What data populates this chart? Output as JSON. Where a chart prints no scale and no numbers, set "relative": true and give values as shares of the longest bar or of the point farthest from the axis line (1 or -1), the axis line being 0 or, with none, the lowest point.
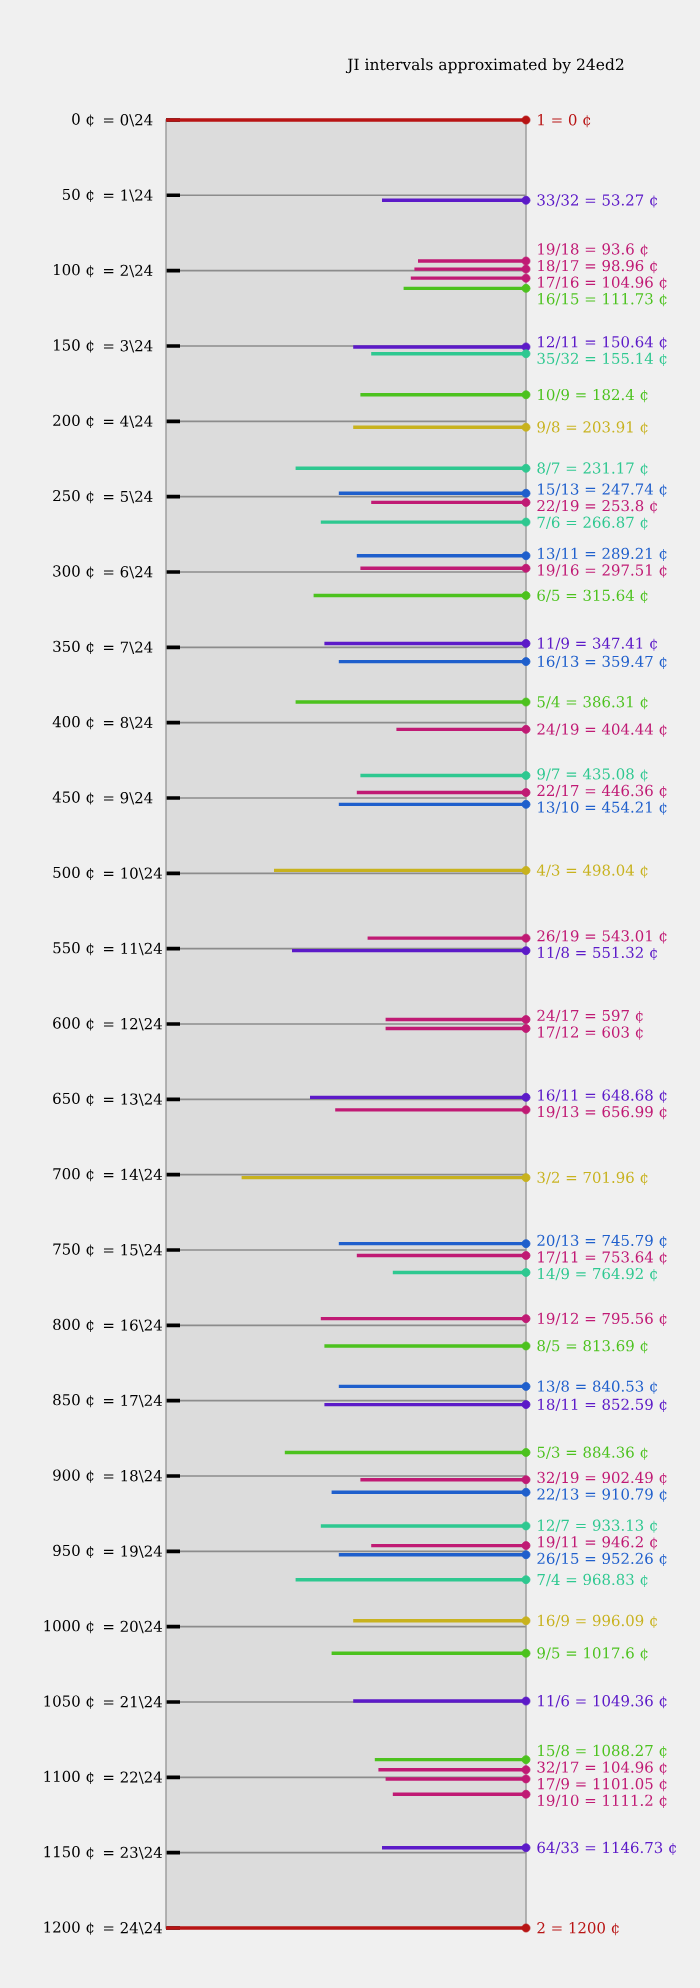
{
  "chart_data": {
    "type": "bar",
    "orientation": "horizontal",
    "relative": true,
    "title": "JI intervals approximated by 24ed2",
    "ylim": [
      1200,
      0
    ],
    "yticks": [
      {
        "value": 0,
        "label": "0 ¢"
      },
      {
        "value": 50,
        "label": "50 ¢"
      },
      {
        "value": 100,
        "label": "100 ¢"
      },
      {
        "value": 150,
        "label": "150 ¢"
      },
      {
        "value": 200,
        "label": "200 ¢"
      },
      {
        "value": 250,
        "label": "250 ¢"
      },
      {
        "value": 300,
        "label": "300 ¢"
      },
      {
        "value": 350,
        "label": "350 ¢"
      },
      {
        "value": 400,
        "label": "400 ¢"
      },
      {
        "value": 450,
        "label": "450 ¢"
      },
      {
        "value": 500,
        "label": "500 ¢"
      },
      {
        "value": 550,
        "label": "550 ¢"
      },
      {
        "value": 600,
        "label": "600 ¢"
      },
      {
        "value": 650,
        "label": "650 ¢"
      },
      {
        "value": 700,
        "label": "700 ¢"
      },
      {
        "value": 750,
        "label": "750 ¢"
      },
      {
        "value": 800,
        "label": "800 ¢"
      },
      {
        "value": 850,
        "label": "850 ¢"
      },
      {
        "value": 900,
        "label": "900 ¢"
      },
      {
        "value": 950,
        "label": "950 ¢"
      },
      {
        "value": 1000,
        "label": "1000 ¢"
      },
      {
        "value": 1050,
        "label": "1050 ¢"
      },
      {
        "value": 1100,
        "label": "1100 ¢"
      },
      {
        "value": 1150,
        "label": "1150 ¢"
      },
      {
        "value": 1200,
        "label": "1200 ¢"
      }
    ],
    "annotations": [
      "= 0\\24",
      "= 1\\24",
      "= 2\\24",
      "= 3\\24",
      "= 4\\24",
      "= 5\\24",
      "= 6\\24",
      "= 7\\24",
      "= 8\\24",
      "= 9\\24",
      "= 10\\24",
      "= 11\\24",
      "= 12\\24",
      "= 13\\24",
      "= 14\\24",
      "= 15\\24",
      "= 16\\24",
      "= 17\\24",
      "= 18\\24",
      "= 19\\24",
      "= 20\\24",
      "= 21\\24",
      "= 22\\24",
      "= 23\\24",
      "= 24\\24"
    ],
    "grid": "y",
    "marker": "circle",
    "legend": "right",
    "series": [
      {
        "name": "1 = 0 ¢",
        "color": "#b81414",
        "x": [
          0
        ],
        "values": [
          -1
        ]
      },
      {
        "name": "33/32 = 53.27 ¢",
        "color": "#5c1ac8",
        "x": [
          53.27
        ],
        "values": [
          -0.4
        ]
      },
      {
        "name": "19/18 = 93.6 ¢",
        "color": "#c01a74",
        "x": [
          93.6
        ],
        "values": [
          -0.3
        ]
      },
      {
        "name": "18/17 = 98.96 ¢",
        "color": "#c01a74",
        "x": [
          98.96
        ],
        "values": [
          -0.31
        ]
      },
      {
        "name": "17/16 = 104.96 ¢",
        "color": "#c01a74",
        "x": [
          104.96
        ],
        "values": [
          -0.32
        ]
      },
      {
        "name": "16/15 = 111.73 ¢",
        "color": "#4cc21e",
        "x": [
          111.73
        ],
        "values": [
          -0.34
        ]
      },
      {
        "name": "12/11 = 150.64 ¢",
        "color": "#5c1ac8",
        "x": [
          150.64
        ],
        "values": [
          -0.48
        ]
      },
      {
        "name": "35/32 = 155.14 ¢",
        "color": "#2ec890",
        "x": [
          155.14
        ],
        "values": [
          -0.43
        ]
      },
      {
        "name": "10/9 = 182.4 ¢",
        "color": "#4cc21e",
        "x": [
          182.4
        ],
        "values": [
          -0.46
        ]
      },
      {
        "name": "9/8 = 203.91 ¢",
        "color": "#c8b21e",
        "x": [
          203.91
        ],
        "values": [
          -0.48
        ]
      },
      {
        "name": "8/7 = 231.17 ¢",
        "color": "#2ec890",
        "x": [
          231.17
        ],
        "values": [
          -0.64
        ]
      },
      {
        "name": "15/13 = 247.74 ¢",
        "color": "#1f5fcc",
        "x": [
          247.74
        ],
        "values": [
          -0.52
        ]
      },
      {
        "name": "22/19 = 253.8 ¢",
        "color": "#c01a74",
        "x": [
          253.8
        ],
        "values": [
          -0.43
        ]
      },
      {
        "name": "7/6 = 266.87 ¢",
        "color": "#2ec890",
        "x": [
          266.87
        ],
        "values": [
          -0.57
        ]
      },
      {
        "name": "13/11 = 289.21 ¢",
        "color": "#1f5fcc",
        "x": [
          289.21
        ],
        "values": [
          -0.47
        ]
      },
      {
        "name": "19/16 = 297.51 ¢",
        "color": "#c01a74",
        "x": [
          297.51
        ],
        "values": [
          -0.46
        ]
      },
      {
        "name": "6/5 = 315.64 ¢",
        "color": "#4cc21e",
        "x": [
          315.64
        ],
        "values": [
          -0.59
        ]
      },
      {
        "name": "11/9 = 347.41 ¢",
        "color": "#5c1ac8",
        "x": [
          347.41
        ],
        "values": [
          -0.56
        ]
      },
      {
        "name": "16/13 = 359.47 ¢",
        "color": "#1f5fcc",
        "x": [
          359.47
        ],
        "values": [
          -0.52
        ]
      },
      {
        "name": "5/4 = 386.31 ¢",
        "color": "#4cc21e",
        "x": [
          386.31
        ],
        "values": [
          -0.64
        ]
      },
      {
        "name": "24/19 = 404.44 ¢",
        "color": "#c01a74",
        "x": [
          404.44
        ],
        "values": [
          -0.36
        ]
      },
      {
        "name": "9/7 = 435.08 ¢",
        "color": "#2ec890",
        "x": [
          435.08
        ],
        "values": [
          -0.46
        ]
      },
      {
        "name": "22/17 = 446.36 ¢",
        "color": "#c01a74",
        "x": [
          446.36
        ],
        "values": [
          -0.47
        ]
      },
      {
        "name": "13/10 = 454.21 ¢",
        "color": "#1f5fcc",
        "x": [
          454.21
        ],
        "values": [
          -0.52
        ]
      },
      {
        "name": "4/3 = 498.04 ¢",
        "color": "#c8b21e",
        "x": [
          498.04
        ],
        "values": [
          -0.7
        ]
      },
      {
        "name": "26/19 = 543.01 ¢",
        "color": "#c01a74",
        "x": [
          543.01
        ],
        "values": [
          -0.44
        ]
      },
      {
        "name": "11/8 = 551.32 ¢",
        "color": "#5c1ac8",
        "x": [
          551.32
        ],
        "values": [
          -0.65
        ]
      },
      {
        "name": "24/17 = 597 ¢",
        "color": "#c01a74",
        "x": [
          597
        ],
        "values": [
          -0.39
        ]
      },
      {
        "name": "17/12 = 603 ¢",
        "color": "#c01a74",
        "x": [
          603
        ],
        "values": [
          -0.39
        ]
      },
      {
        "name": "16/11 = 648.68 ¢",
        "color": "#5c1ac8",
        "x": [
          648.68
        ],
        "values": [
          -0.6
        ]
      },
      {
        "name": "19/13 = 656.99 ¢",
        "color": "#c01a74",
        "x": [
          656.99
        ],
        "values": [
          -0.53
        ]
      },
      {
        "name": "3/2 = 701.96 ¢",
        "color": "#c8b21e",
        "x": [
          701.96
        ],
        "values": [
          -0.79
        ]
      },
      {
        "name": "20/13 = 745.79 ¢",
        "color": "#1f5fcc",
        "x": [
          745.79
        ],
        "values": [
          -0.52
        ]
      },
      {
        "name": "17/11 = 753.64 ¢",
        "color": "#c01a74",
        "x": [
          753.64
        ],
        "values": [
          -0.47
        ]
      },
      {
        "name": "14/9 = 764.92 ¢",
        "color": "#2ec890",
        "x": [
          764.92
        ],
        "values": [
          -0.37
        ]
      },
      {
        "name": "19/12 = 795.56 ¢",
        "color": "#c01a74",
        "x": [
          795.56
        ],
        "values": [
          -0.57
        ]
      },
      {
        "name": "8/5 = 813.69 ¢",
        "color": "#4cc21e",
        "x": [
          813.69
        ],
        "values": [
          -0.56
        ]
      },
      {
        "name": "13/8 = 840.53 ¢",
        "color": "#1f5fcc",
        "x": [
          840.53
        ],
        "values": [
          -0.52
        ]
      },
      {
        "name": "18/11 = 852.59 ¢",
        "color": "#5c1ac8",
        "x": [
          852.59
        ],
        "values": [
          -0.56
        ]
      },
      {
        "name": "5/3 = 884.36 ¢",
        "color": "#4cc21e",
        "x": [
          884.36
        ],
        "values": [
          -0.67
        ]
      },
      {
        "name": "32/19 = 902.49 ¢",
        "color": "#c01a74",
        "x": [
          902.49
        ],
        "values": [
          -0.46
        ]
      },
      {
        "name": "22/13 = 910.79 ¢",
        "color": "#1f5fcc",
        "x": [
          910.79
        ],
        "values": [
          -0.54
        ]
      },
      {
        "name": "12/7 = 933.13 ¢",
        "color": "#2ec890",
        "x": [
          933.13
        ],
        "values": [
          -0.57
        ]
      },
      {
        "name": "19/11 = 946.2 ¢",
        "color": "#c01a74",
        "x": [
          946.2
        ],
        "values": [
          -0.43
        ]
      },
      {
        "name": "26/15 = 952.26 ¢",
        "color": "#1f5fcc",
        "x": [
          952.26
        ],
        "values": [
          -0.52
        ]
      },
      {
        "name": "7/4 = 968.83 ¢",
        "color": "#2ec890",
        "x": [
          968.83
        ],
        "values": [
          -0.64
        ]
      },
      {
        "name": "16/9 = 996.09 ¢",
        "color": "#c8b21e",
        "x": [
          996.09
        ],
        "values": [
          -0.48
        ]
      },
      {
        "name": "9/5 = 1017.6 ¢",
        "color": "#4cc21e",
        "x": [
          1017.6
        ],
        "values": [
          -0.54
        ]
      },
      {
        "name": "11/6 = 1049.36 ¢",
        "color": "#5c1ac8",
        "x": [
          1049.36
        ],
        "values": [
          -0.48
        ]
      },
      {
        "name": "15/8 = 1088.27 ¢",
        "color": "#4cc21e",
        "x": [
          1088.27
        ],
        "values": [
          -0.42
        ]
      },
      {
        "name": "32/17 = 104.96 ¢",
        "color": "#c01a74",
        "x": [
          1095
        ],
        "values": [
          -0.41
        ]
      },
      {
        "name": "17/9 = 1101.05 ¢",
        "color": "#c01a74",
        "x": [
          1101.05
        ],
        "values": [
          -0.39
        ]
      },
      {
        "name": "19/10 = 1111.2 ¢",
        "color": "#c01a74",
        "x": [
          1111.2
        ],
        "values": [
          -0.37
        ]
      },
      {
        "name": "64/33 = 1146.73 ¢",
        "color": "#5c1ac8",
        "x": [
          1146.73
        ],
        "values": [
          -0.4
        ]
      },
      {
        "name": "2 = 1200 ¢",
        "color": "#b81414",
        "x": [
          1200
        ],
        "values": [
          -1
        ]
      }
    ]
  }
}
